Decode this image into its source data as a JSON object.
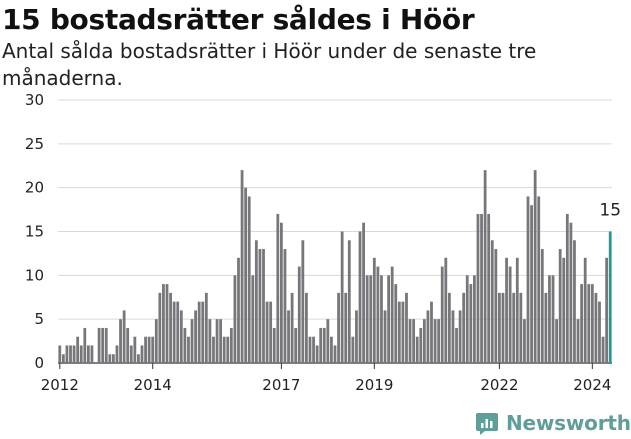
{
  "title": "15 bostadsrätter såldes i Höör",
  "subtitle": "Antal sålda bostadsrätter i Höör under de senaste tre månaderna.",
  "brand": "Newsworthy",
  "colors": {
    "bar": "#77767a",
    "highlight": "#1d9a95",
    "grid": "#d9d9d9",
    "brand": "#5f9e99"
  },
  "chart_data": {
    "type": "bar",
    "title": "15 bostadsrätter såldes i Höör",
    "subtitle": "Antal sålda bostadsrätter i Höör under de senaste tre månaderna.",
    "xlabel": "",
    "ylabel": "",
    "ylim": [
      0,
      30
    ],
    "yticks": [
      0,
      5,
      10,
      15,
      20,
      25,
      30
    ],
    "grid": true,
    "legend": "none",
    "x_tick_labels": [
      "2012",
      "2014",
      "2017",
      "2019",
      "2022",
      "2024"
    ],
    "x_tick_positions": [
      0.5,
      26.5,
      62.5,
      88.5,
      123.5,
      149.5
    ],
    "highlight_label": "15",
    "values": [
      2,
      1,
      2,
      2,
      2,
      3,
      2,
      4,
      2,
      2,
      0,
      4,
      4,
      4,
      1,
      1,
      2,
      5,
      6,
      4,
      2,
      3,
      1,
      2,
      3,
      3,
      3,
      5,
      8,
      9,
      9,
      8,
      7,
      7,
      6,
      4,
      3,
      5,
      6,
      7,
      7,
      8,
      5,
      3,
      5,
      5,
      3,
      3,
      4,
      10,
      12,
      22,
      20,
      19,
      10,
      14,
      13,
      13,
      7,
      7,
      4,
      17,
      16,
      13,
      6,
      8,
      4,
      11,
      14,
      8,
      3,
      3,
      2,
      4,
      4,
      5,
      3,
      2,
      8,
      15,
      8,
      14,
      3,
      6,
      15,
      16,
      10,
      10,
      12,
      11,
      10,
      6,
      10,
      11,
      9,
      7,
      7,
      8,
      5,
      5,
      3,
      4,
      5,
      6,
      7,
      5,
      5,
      11,
      12,
      8,
      6,
      4,
      6,
      8,
      10,
      9,
      10,
      17,
      17,
      22,
      17,
      14,
      13,
      8,
      8,
      12,
      11,
      8,
      12,
      8,
      5,
      19,
      18,
      22,
      19,
      13,
      8,
      10,
      10,
      5,
      13,
      12,
      17,
      16,
      14,
      5,
      9,
      12,
      9,
      9,
      8,
      7,
      3,
      12,
      15
    ]
  }
}
